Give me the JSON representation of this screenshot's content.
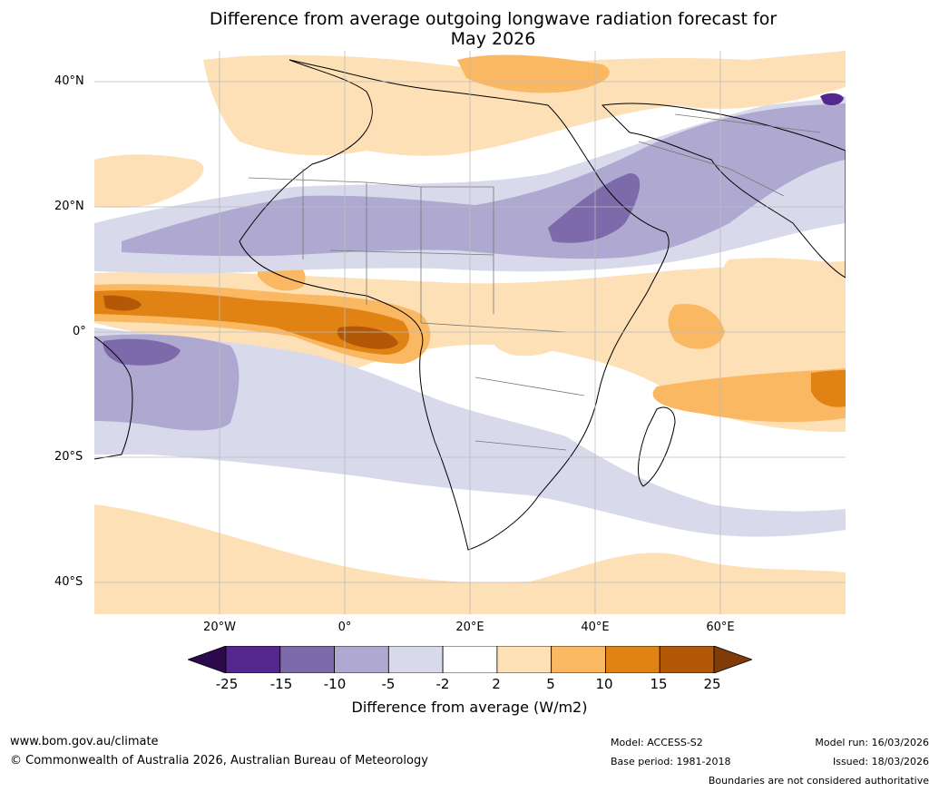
{
  "title": {
    "line1": "Difference from average outgoing longwave radiation forecast for",
    "line2": "May 2026"
  },
  "map": {
    "lat_labels": [
      "40°N",
      "20°N",
      "0°",
      "20°S",
      "40°S"
    ],
    "lon_labels": [
      "20°W",
      "0°",
      "20°E",
      "40°E",
      "60°E"
    ],
    "extent": {
      "lon_min": -40,
      "lon_max": 80,
      "lat_min": -45,
      "lat_max": 45
    }
  },
  "colorbar": {
    "ticks": [
      "-25",
      "-15",
      "-10",
      "-5",
      "-2",
      "2",
      "5",
      "10",
      "15",
      "25"
    ],
    "colors": [
      "#2d0a4e",
      "#54278f",
      "#7d6aab",
      "#afa8d0",
      "#d8d9ea",
      "#ffffff",
      "#fde0b6",
      "#fbb863",
      "#e08214",
      "#b35806",
      "#7f3b08"
    ],
    "label": "Difference from average (W/m2)"
  },
  "footer": {
    "website": "www.bom.gov.au/climate",
    "copyright": "© Commonwealth of Australia 2026, Australian Bureau of Meteorology",
    "model": "Model: ACCESS-S2",
    "base_period": "Base period: 1981-2018",
    "model_run": "Model run: 16/03/2026",
    "issued": "Issued: 18/03/2026",
    "disclaimer": "Boundaries are not considered authoritative"
  }
}
